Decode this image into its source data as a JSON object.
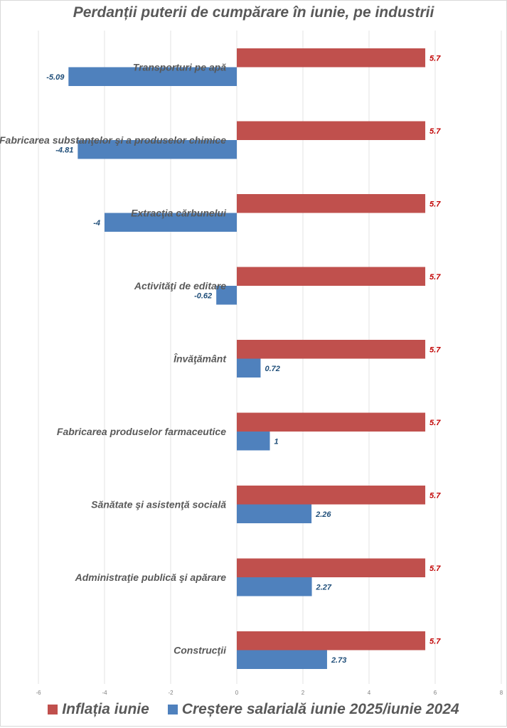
{
  "chart_data": {
    "type": "bar",
    "orientation": "horizontal",
    "title": "Perdanții puterii de cumpărare în iunie, pe industrii",
    "xlabel": "",
    "ylabel": "",
    "xlim": [
      -6,
      8
    ],
    "xticks": [
      -6,
      -4,
      -2,
      0,
      2,
      4,
      6,
      8
    ],
    "xtick_labels": [
      "-6",
      "-4",
      "-2",
      "0",
      "2",
      "4",
      "6",
      "8"
    ],
    "grid": true,
    "legend_position": "bottom",
    "categories": [
      "Transporturi pe apă",
      "Fabricarea substanţelor şi a produselor chimice",
      "Extracţia cărbunelui",
      "Activităţi de editare",
      "Învăţământ",
      "Fabricarea produselor farmaceutice",
      "Sănătate şi asistenţă socială",
      "Administraţie publică şi apărare",
      "Construcţii"
    ],
    "series": [
      {
        "name": "Inflația iunie",
        "color": "#c0504d",
        "label_color": "#c00000",
        "values": [
          5.7,
          5.7,
          5.7,
          5.7,
          5.7,
          5.7,
          5.7,
          5.7,
          5.7
        ],
        "labels": [
          "5.7",
          "5.7",
          "5.7",
          "5.7",
          "5.7",
          "5.7",
          "5.7",
          "5.7",
          "5.7"
        ]
      },
      {
        "name": "Creștere salarială iunie 2025/iunie 2024",
        "color": "#4f81bd",
        "label_color": "#1f4e79",
        "values": [
          -5.09,
          -4.81,
          -4,
          -0.62,
          0.72,
          1,
          2.26,
          2.27,
          2.73
        ],
        "labels": [
          "-5.09",
          "-4.81",
          "-4",
          "-0.62",
          "0.72",
          "1",
          "2.26",
          "2.27",
          "2.73"
        ]
      }
    ]
  }
}
